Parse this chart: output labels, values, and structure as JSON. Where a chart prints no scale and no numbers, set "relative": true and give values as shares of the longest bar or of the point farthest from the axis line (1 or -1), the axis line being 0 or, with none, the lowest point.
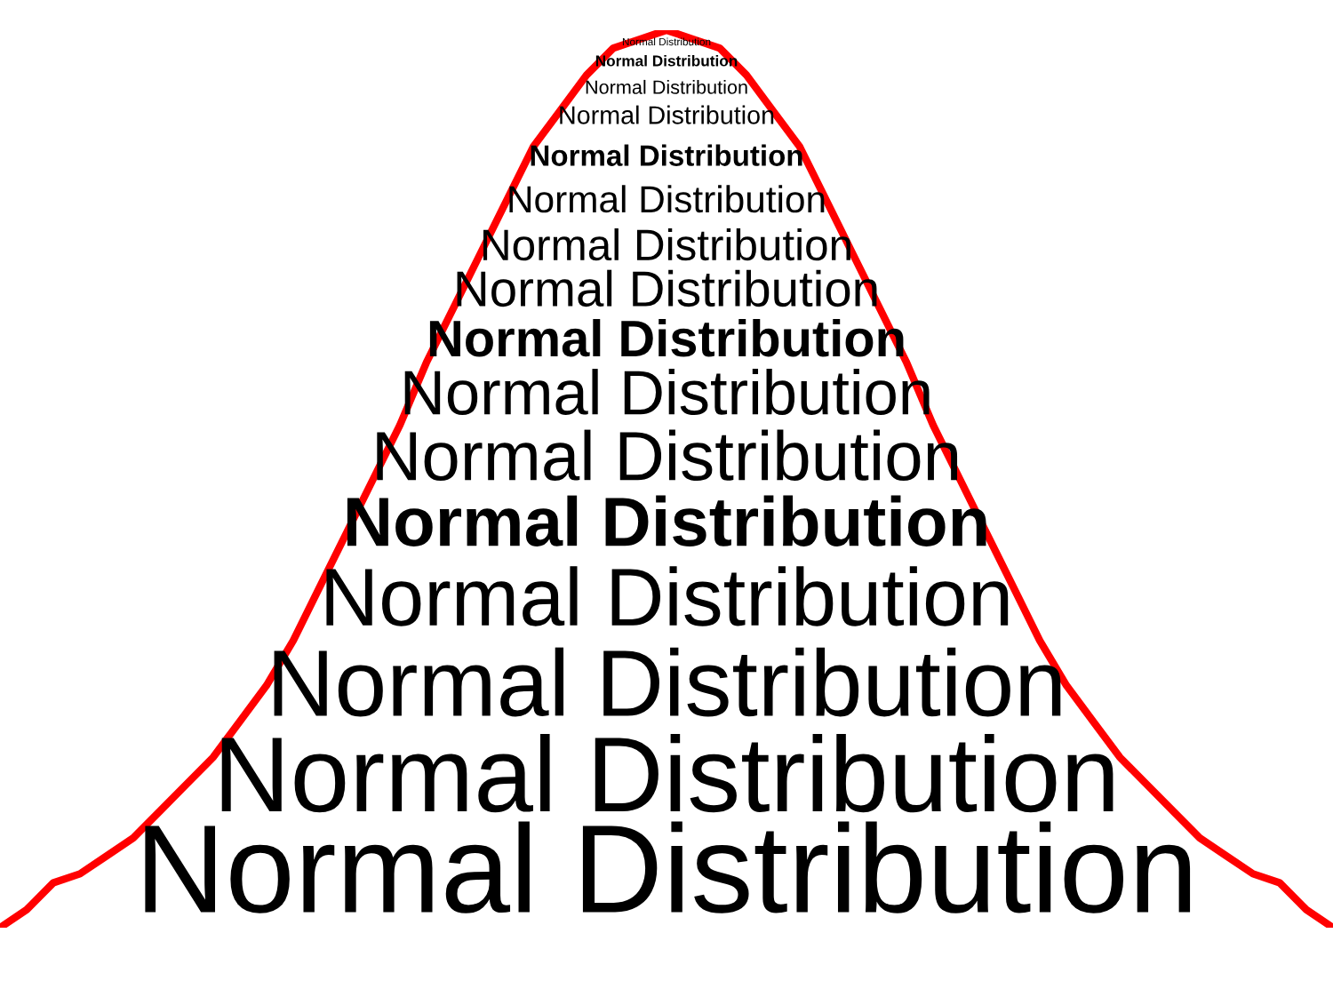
{
  "chart_data": {
    "type": "line",
    "relative": true,
    "legend": false,
    "marker": "none",
    "line_style": "solid",
    "tick_labels": false,
    "categories": [
      null,
      null,
      null,
      null,
      null,
      null,
      null,
      null,
      null,
      null,
      null,
      null,
      null,
      null,
      null,
      null,
      null,
      null,
      null,
      null,
      null,
      null,
      null,
      null,
      null,
      null,
      null,
      null,
      null,
      null,
      null,
      null,
      null,
      null,
      null,
      null,
      null,
      null,
      null,
      null,
      null,
      null,
      null,
      null,
      null,
      null,
      null,
      null,
      null,
      null,
      null
    ],
    "series": [
      {
        "color": "#ff0000",
        "values": [
          0,
          0.02,
          0.05,
          0.06,
          0.08,
          0.1,
          0.13,
          0.16,
          0.19,
          0.23,
          0.27,
          0.32,
          0.38,
          0.44,
          0.5,
          0.56,
          0.63,
          0.69,
          0.75,
          0.81,
          0.87,
          0.91,
          0.95,
          0.98,
          0.99,
          1,
          0.99,
          0.98,
          0.95,
          0.91,
          0.87,
          0.81,
          0.75,
          0.69,
          0.63,
          0.56,
          0.5,
          0.44,
          0.38,
          0.32,
          0.27,
          0.23,
          0.19,
          0.16,
          0.13,
          0.1,
          0.08,
          0.06,
          0.05,
          0.02,
          0
        ]
      }
    ],
    "annotations": [
      "Normal Distribution",
      "Normal Distribution",
      "Normal Distribution",
      "Normal Distribution",
      "Normal Distribution",
      "Normal Distribution",
      "Normal Distribution",
      "Normal Distribution",
      "Normal Distribution",
      "Normal Distribution",
      "Normal Distribution",
      "Normal Distribution",
      "Normal Distribution",
      "Normal Distribution",
      "Normal Distribution",
      "Normal Distribution"
    ]
  }
}
